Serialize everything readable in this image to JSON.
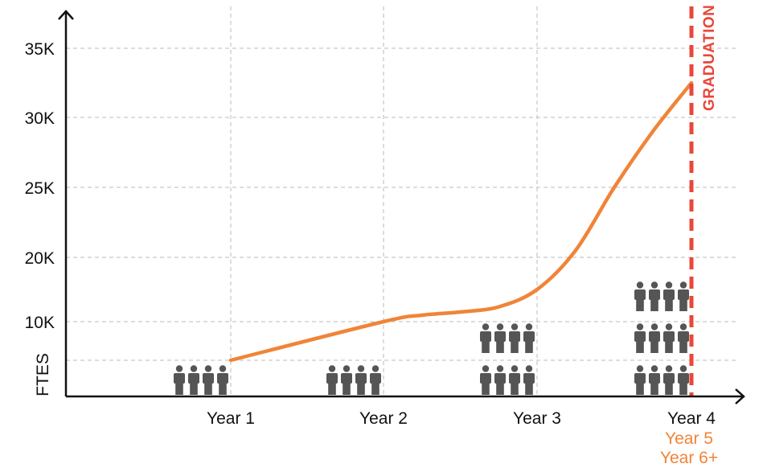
{
  "colors": {
    "line": "#F08438",
    "graduation": "#E8473A",
    "axis": "#111111",
    "grid": "#BBBBBB",
    "person_icon": "#555555"
  },
  "chart_data": {
    "type": "line",
    "ylabel": "FTES",
    "xlabel": "",
    "x_categories": [
      "Year 1",
      "Year 2",
      "Year 3",
      "Year 4"
    ],
    "x_extra_labels": [
      "Year 5",
      "Year 6+"
    ],
    "y_ticks": [
      {
        "value": 10000,
        "label": "10K"
      },
      {
        "value": 20000,
        "label": "20K"
      },
      {
        "value": 25000,
        "label": "25K"
      },
      {
        "value": 30000,
        "label": "30K"
      },
      {
        "value": 35000,
        "label": "35K"
      }
    ],
    "extra_gridline_value": 5000,
    "series": [
      {
        "x": [
          1,
          2,
          2.25,
          2.5,
          2.75,
          3,
          3.25,
          3.5,
          3.75,
          4
        ],
        "values": [
          5000,
          10000,
          11000,
          11500,
          12300,
          15000,
          20500,
          25000,
          29000,
          32500
        ]
      }
    ],
    "annotations": [
      {
        "type": "vline",
        "x": 4,
        "style": "dashed",
        "label": "GRADUATION"
      }
    ],
    "cohorts": [
      {
        "category": "Year 1",
        "rows": 1,
        "per_row": 4
      },
      {
        "category": "Year 2",
        "rows": 1,
        "per_row": 4
      },
      {
        "category": "Year 3",
        "rows": 2,
        "per_row": 4
      },
      {
        "category": "Year 4",
        "rows": 3,
        "per_row": 4
      }
    ],
    "grid": true
  }
}
